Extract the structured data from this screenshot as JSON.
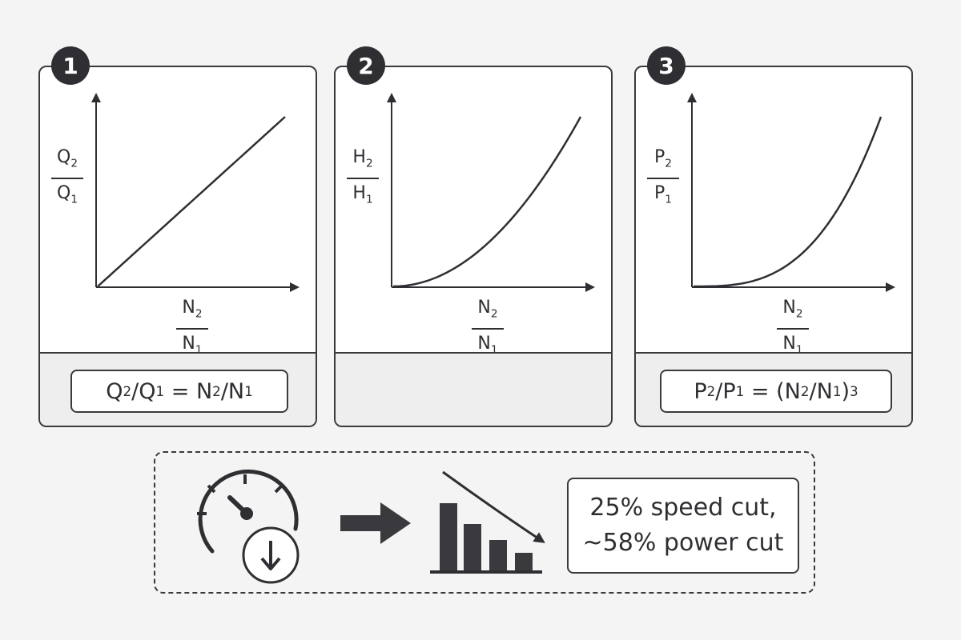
{
  "panels": [
    {
      "number": "1",
      "y_label": {
        "num": "Q",
        "num_sub": "2",
        "den": "Q",
        "den_sub": "1"
      },
      "x_label": {
        "num": "N",
        "num_sub": "2",
        "den": "N",
        "den_sub": "1"
      },
      "curve_exponent": 1,
      "formula": {
        "a": "Q",
        "a_sub": "2",
        "b": "/Q",
        "b_sub": "1",
        "c": " = N",
        "c_sub": "2",
        "d": "/N",
        "d_sub": "1"
      }
    },
    {
      "number": "2",
      "y_label": {
        "num": "H",
        "num_sub": "2",
        "den": "H",
        "den_sub": "1"
      },
      "x_label": {
        "num": "N",
        "num_sub": "2",
        "den": "N",
        "den_sub": "1"
      },
      "curve_exponent": 2,
      "formula": null
    },
    {
      "number": "3",
      "y_label": {
        "num": "P",
        "num_sub": "2",
        "den": "P",
        "den_sub": "1"
      },
      "x_label": {
        "num": "N",
        "num_sub": "2",
        "den": "N",
        "den_sub": "1"
      },
      "curve_exponent": 3,
      "formula": {
        "a": "P",
        "a_sub": "2",
        "b": "/P",
        "b_sub": "1",
        "c": " = (N",
        "c_sub": "2",
        "d": "/N",
        "d_sub": "1",
        "e": ")",
        "e_sup": "3"
      }
    }
  ],
  "summary": {
    "line1": "25% speed cut,",
    "line2": "~58% power cut"
  },
  "icons": [
    "speedometer-icon",
    "arrow-down-icon",
    "right-arrow-icon",
    "decreasing-bar-chart-icon"
  ],
  "colors": {
    "ink": "#2f2f33",
    "panel_bg": "#ffffff",
    "footer_bg": "#eeeeee",
    "page_bg": "#f4f4f4"
  }
}
